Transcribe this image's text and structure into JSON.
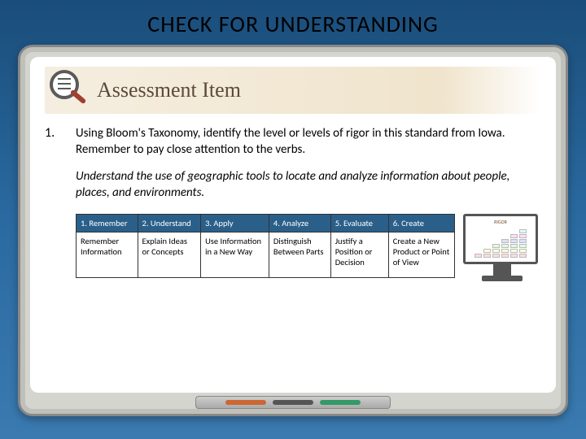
{
  "title": "CHECK FOR UNDERSTANDING",
  "banner_label": "Assessment Item",
  "question": {
    "number": "1.",
    "prompt": "Using Bloom's Taxonomy, identify the level or levels of rigor in this standard from Iowa. Remember to pay close attention to the verbs.",
    "standard": "Understand the use of geographic tools to locate and analyze information about people, places, and environments."
  },
  "bloom_table": {
    "headers": [
      "1. Remember",
      "2. Understand",
      "3. Apply",
      "4. Analyze",
      "5. Evaluate",
      "6. Create"
    ],
    "cells": [
      "Remember Information",
      "Explain Ideas or Concepts",
      "Use Information in a New Way",
      "Distinguish Between Parts",
      "Justify a Position or Decision",
      "Create a New Product or Point of View"
    ]
  },
  "monitor_label": "RIGOR",
  "colors": {
    "bg_top": "#1a4d7a",
    "table_header_bg": "#2a5f8a",
    "banner_bg": "#f0e4cc"
  }
}
